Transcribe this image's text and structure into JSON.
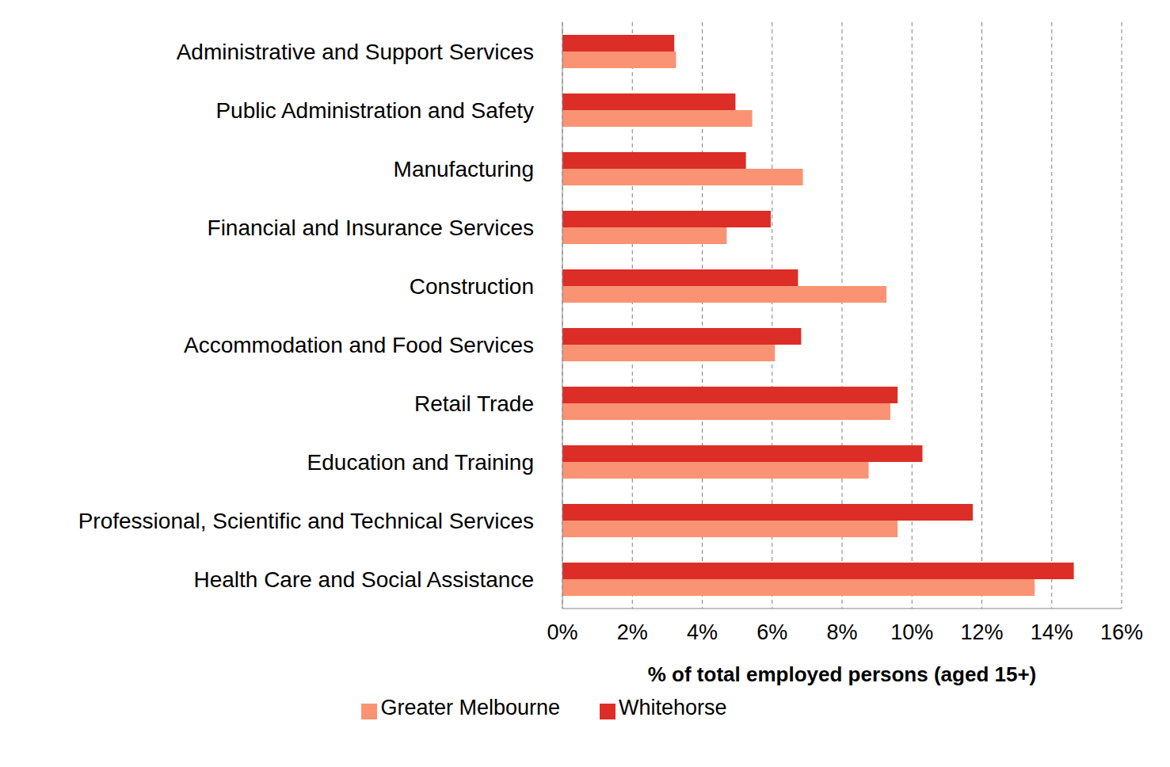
{
  "chart_data": {
    "type": "bar",
    "orientation": "horizontal",
    "categories": [
      "Administrative and Support Services",
      "Public Administration and Safety",
      "Manufacturing",
      "Financial and Insurance Services",
      "Construction",
      "Accommodation and Food Services",
      "Retail Trade",
      "Education and Training",
      "Professional, Scientific and Technical Services",
      "Health Care and Social Assistance"
    ],
    "series": [
      {
        "name": "Whitehorse",
        "color": "#dc2d27",
        "values": [
          3.2,
          4.95,
          5.25,
          5.96,
          6.74,
          6.83,
          9.59,
          10.3,
          11.74,
          14.63
        ]
      },
      {
        "name": "Greater Melbourne",
        "color": "#fa9373",
        "values": [
          3.25,
          5.43,
          6.88,
          4.7,
          9.27,
          6.08,
          9.38,
          8.76,
          9.59,
          13.51
        ]
      }
    ],
    "x_label": "% of total employed persons (aged 15+)",
    "xlim": [
      0,
      16
    ],
    "xticks": [
      {
        "value": 0,
        "label": "0%"
      },
      {
        "value": 2,
        "label": "2%"
      },
      {
        "value": 4,
        "label": "4%"
      },
      {
        "value": 6,
        "label": "6%"
      },
      {
        "value": 8,
        "label": "8%"
      },
      {
        "value": 10,
        "label": "10%"
      },
      {
        "value": 12,
        "label": "12%"
      },
      {
        "value": 14,
        "label": "14%"
      },
      {
        "value": 16,
        "label": "16%"
      }
    ],
    "grid": true,
    "legend": "bottom"
  }
}
